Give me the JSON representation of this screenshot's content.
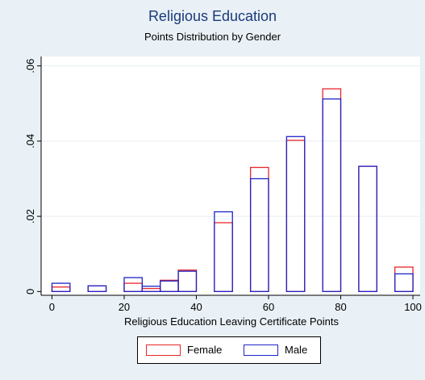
{
  "chart_data": {
    "type": "bar",
    "title": "Religious Education",
    "subtitle": "Points Distribution by Gender",
    "xlabel": "Religious Education Leaving Certificate Points",
    "ylabel": "",
    "xlim": [
      -3,
      102
    ],
    "ylim": [
      -0.001,
      0.0625
    ],
    "x_ticks": [
      0,
      20,
      40,
      60,
      80,
      100
    ],
    "x_tick_labels": [
      "0",
      "20",
      "40",
      "60",
      "80",
      "100"
    ],
    "y_ticks": [
      0,
      0.02,
      0.04,
      0.06
    ],
    "y_tick_labels": [
      "0",
      ".02",
      ".04",
      ".06"
    ],
    "grid": true,
    "legend_position": "bottom",
    "bars": [
      {
        "x0": 0,
        "x1": 5,
        "female": 0.0012,
        "male": 0.0022
      },
      {
        "x0": 10,
        "x1": 15,
        "female": 0.0015,
        "male": 0.0015
      },
      {
        "x0": 20,
        "x1": 25,
        "female": 0.0022,
        "male": 0.0037
      },
      {
        "x0": 25,
        "x1": 30,
        "female": 0.0008,
        "male": 0.0014
      },
      {
        "x0": 30,
        "x1": 35,
        "female": 0.003,
        "male": 0.0028
      },
      {
        "x0": 35,
        "x1": 40,
        "female": 0.0057,
        "male": 0.0054
      },
      {
        "x0": 45,
        "x1": 50,
        "female": 0.0183,
        "male": 0.0212
      },
      {
        "x0": 55,
        "x1": 60,
        "female": 0.033,
        "male": 0.03
      },
      {
        "x0": 65,
        "x1": 70,
        "female": 0.0402,
        "male": 0.0412
      },
      {
        "x0": 75,
        "x1": 80,
        "female": 0.0539,
        "male": 0.0512
      },
      {
        "x0": 85,
        "x1": 90,
        "female": 0.0333,
        "male": 0.0333
      },
      {
        "x0": 95,
        "x1": 100,
        "female": 0.0065,
        "male": 0.0047
      }
    ],
    "series": [
      {
        "name": "Female",
        "key": "female",
        "color": "#e8262a"
      },
      {
        "name": "Male",
        "key": "male",
        "color": "#1f24c8"
      }
    ]
  },
  "colors": {
    "background": "#e9f1f6",
    "plot_background": "#ffffff",
    "gridline": "#e6eef3",
    "title": "#1a3a7a"
  }
}
